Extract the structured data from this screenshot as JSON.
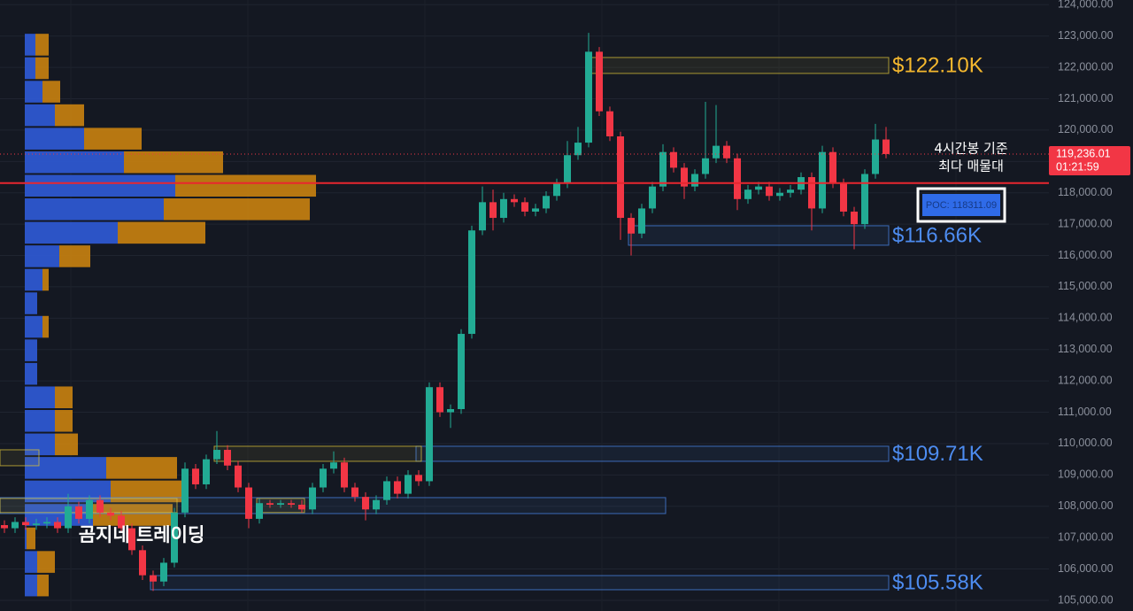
{
  "chart_data": {
    "type": "candlestick",
    "ylim": [
      104660,
      124150
    ],
    "yticks": [
      {
        "value": 105000,
        "label": "105,000.00"
      },
      {
        "value": 106000,
        "label": "106,000.00"
      },
      {
        "value": 107000,
        "label": "107,000.00"
      },
      {
        "value": 108000,
        "label": "108,000.00"
      },
      {
        "value": 109000,
        "label": "109,000.00"
      },
      {
        "value": 110000,
        "label": "110,000.00"
      },
      {
        "value": 111000,
        "label": "111,000.00"
      },
      {
        "value": 112000,
        "label": "112,000.00"
      },
      {
        "value": 113000,
        "label": "113,000.00"
      },
      {
        "value": 114000,
        "label": "114,000.00"
      },
      {
        "value": 115000,
        "label": "115,000.00"
      },
      {
        "value": 116000,
        "label": "116,000.00"
      },
      {
        "value": 117000,
        "label": "117,000.00"
      },
      {
        "value": 118000,
        "label": "118,000.00"
      },
      {
        "value": 119000,
        "label": "119,000.00"
      },
      {
        "value": 120000,
        "label": "120,000.00"
      },
      {
        "value": 121000,
        "label": "121,000.00"
      },
      {
        "value": 122000,
        "label": "122,000.00"
      },
      {
        "value": 123000,
        "label": "123,000.00"
      },
      {
        "value": 124000,
        "label": "124,000.00"
      }
    ],
    "grid": true,
    "up_color": "#22ab94",
    "down_color": "#f23645",
    "open": [
      107400,
      107300,
      107500,
      107400,
      107450,
      107500,
      107300,
      108000,
      107600,
      108200,
      107800,
      107700,
      107300,
      106600,
      105800,
      105600,
      106200,
      107800,
      109200,
      108700,
      109500,
      109800,
      109300,
      108600,
      107600,
      108100,
      108050,
      108100,
      108050,
      107900,
      108600,
      109200,
      109400,
      108600,
      108300,
      107900,
      108200,
      108800,
      108400,
      109000,
      108800,
      111800,
      111000,
      111100,
      113500,
      116800,
      117700,
      117200,
      117800,
      117700,
      117400,
      117500,
      117900,
      118300,
      119200,
      119600,
      122500,
      120600,
      119800,
      117200,
      116700,
      117500,
      118200,
      119300,
      118800,
      118200,
      118600,
      119100,
      119500,
      119100,
      117800,
      118100,
      118200,
      117900,
      118000,
      118100,
      118500,
      117500,
      119300,
      118300,
      117400,
      117000,
      118600,
      119700
    ],
    "high": [
      107550,
      107650,
      107650,
      107600,
      107650,
      107650,
      108400,
      108150,
      108350,
      108350,
      107950,
      107850,
      107450,
      106750,
      105950,
      106350,
      107950,
      109400,
      109350,
      109650,
      110400,
      109950,
      109450,
      108750,
      108250,
      108200,
      108200,
      108200,
      108200,
      108750,
      109350,
      109750,
      109550,
      108750,
      108450,
      108350,
      108950,
      108950,
      109150,
      109150,
      111950,
      111950,
      111250,
      113650,
      116950,
      118200,
      118100,
      118000,
      117950,
      117850,
      117650,
      118050,
      118450,
      119650,
      120100,
      123100,
      122650,
      120750,
      119950,
      117350,
      117650,
      118350,
      119550,
      119450,
      118950,
      118750,
      120900,
      120800,
      119650,
      119250,
      118250,
      118350,
      118350,
      118150,
      118250,
      118650,
      118650,
      119500,
      119450,
      118450,
      117550,
      118750,
      120200,
      120100
    ],
    "low": [
      107150,
      107150,
      107250,
      107250,
      107300,
      107150,
      107150,
      107450,
      107450,
      107650,
      107550,
      107150,
      106450,
      105650,
      105300,
      105450,
      106050,
      107650,
      108550,
      108550,
      109350,
      109150,
      108450,
      107300,
      107450,
      107950,
      107950,
      107950,
      107800,
      107750,
      108450,
      109050,
      108450,
      108150,
      107550,
      107750,
      108050,
      108250,
      108250,
      108650,
      108650,
      110850,
      110500,
      110950,
      113350,
      116650,
      116800,
      117050,
      117550,
      117250,
      117250,
      117350,
      117750,
      118150,
      119050,
      119450,
      120450,
      119650,
      116500,
      116000,
      116550,
      117350,
      118050,
      118650,
      117800,
      118050,
      118450,
      118950,
      118950,
      117450,
      117650,
      117950,
      117750,
      117750,
      117850,
      117950,
      116800,
      117350,
      118150,
      117250,
      116200,
      116850,
      118450,
      119100
    ],
    "close": [
      107300,
      107500,
      107400,
      107450,
      107500,
      107300,
      108000,
      107600,
      108200,
      107800,
      107700,
      107300,
      106600,
      105800,
      105600,
      106200,
      107800,
      109200,
      108700,
      109500,
      109800,
      109300,
      108600,
      107600,
      108100,
      108050,
      108100,
      108050,
      107900,
      108600,
      109200,
      109400,
      108600,
      108300,
      107900,
      108200,
      108800,
      108400,
      109000,
      108800,
      111800,
      111000,
      111100,
      113500,
      116800,
      117700,
      117200,
      117800,
      117700,
      117400,
      117500,
      117900,
      118300,
      119200,
      119600,
      122500,
      120600,
      119800,
      117200,
      116700,
      117500,
      118200,
      119300,
      118800,
      118200,
      118600,
      119100,
      119500,
      119100,
      117800,
      118100,
      118200,
      117900,
      118000,
      118100,
      118500,
      117500,
      119300,
      118300,
      117400,
      117000,
      118600,
      119700,
      119236.01
    ],
    "volume_profile": {
      "bins": [
        105100,
        105850,
        106600,
        107350,
        108100,
        108850,
        109600,
        110350,
        111100,
        111850,
        112600,
        113350,
        114100,
        114850,
        115600,
        116350,
        117100,
        117850,
        118600,
        119350,
        120100,
        120850,
        121600,
        122350,
        123100
      ],
      "buy": [
        14,
        14,
        2,
        77,
        97,
        92,
        34,
        34,
        34,
        14,
        14,
        20,
        14,
        20,
        39,
        105,
        157,
        170,
        112,
        67,
        34,
        20,
        12,
        12
      ],
      "sell": [
        13,
        20,
        10,
        90,
        80,
        80,
        26,
        20,
        20,
        0,
        0,
        7,
        0,
        7,
        35,
        99,
        165,
        159,
        112,
        65,
        33,
        20,
        15,
        15
      ],
      "buy_color": "#2f5bd8",
      "sell_color": "#c9820f"
    },
    "zones": [
      {
        "top": 122316,
        "bottom": 121808,
        "start": 55,
        "end": 83,
        "color": "#d8c03a",
        "label": "$122.10K"
      },
      {
        "top": 116949,
        "bottom": 116328,
        "start": 59,
        "end": 83,
        "color": "#4a86e8",
        "label": "$116.66K"
      },
      {
        "top": 109915,
        "bottom": 109435,
        "start": 39,
        "end": 83,
        "color": "#4a86e8",
        "label": "$109.71K"
      },
      {
        "top": 109915,
        "bottom": 109435,
        "start": 20,
        "end": 39,
        "color": "#d8c03a"
      },
      {
        "top": 105790,
        "bottom": 105339,
        "start": 14,
        "end": 83,
        "color": "#4a86e8",
        "label": "$105.58K"
      },
      {
        "top": 108277,
        "bottom": 107768,
        "start": 0,
        "end": 62,
        "color": "#4a86e8"
      },
      {
        "top": 108250,
        "bottom": 107800,
        "start": 0,
        "end": 16,
        "color": "#d8c03a"
      },
      {
        "top": 108250,
        "bottom": 107800,
        "start": 24,
        "end": 28,
        "color": "#d8c03a"
      },
      {
        "top": 109802,
        "bottom": 109294,
        "start": 0,
        "end": 3,
        "color": "#d8c03a"
      }
    ],
    "poc": {
      "value": 118311.09,
      "label": "POC: 118311.09",
      "color": "#e8262f"
    },
    "last_price": {
      "value": 119236.01,
      "label": "119,236.01"
    },
    "countdown": "01:21:59",
    "note": [
      "4시간봉 기준",
      "최다 매물대"
    ],
    "watermark": "곰지네 트레이딩"
  }
}
